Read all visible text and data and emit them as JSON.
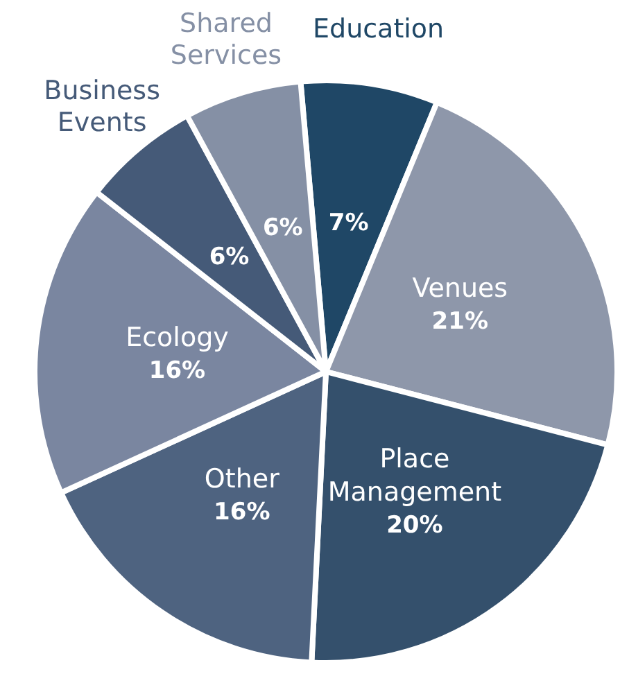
{
  "chart_data": {
    "type": "pie",
    "categories": [
      "Education",
      "Venues",
      "Place Management",
      "Other",
      "Ecology",
      "Business Events",
      "Shared Services"
    ],
    "values": [
      7,
      21,
      20,
      16,
      16,
      6,
      6
    ],
    "value_labels": [
      "7%",
      "21%",
      "20%",
      "16%",
      "16%",
      "6%",
      "6%"
    ],
    "colors": [
      "#1f4766",
      "#8e97aa",
      "#34506c",
      "#4e6380",
      "#7a86a0",
      "#455a78",
      "#8590a5"
    ],
    "legend": false
  }
}
